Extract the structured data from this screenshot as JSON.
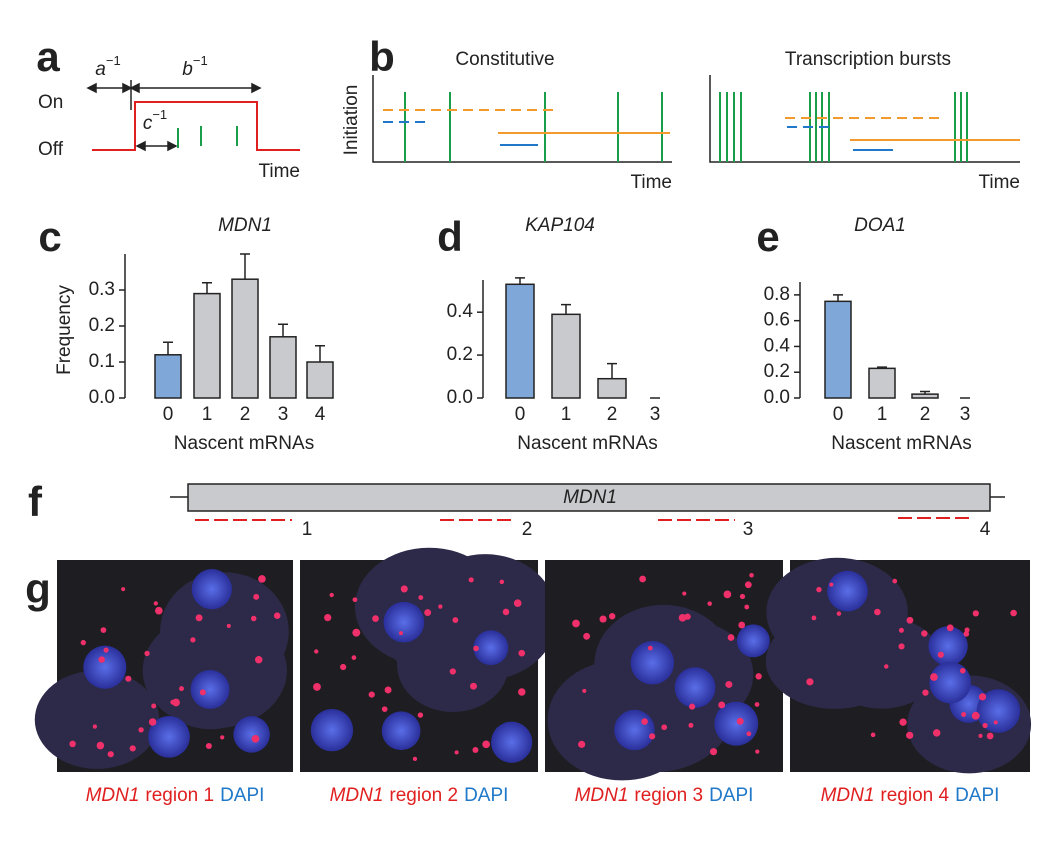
{
  "panel_a": {
    "label": "a",
    "on": "On",
    "off": "Off",
    "time": "Time",
    "durations": [
      {
        "base": "a",
        "exp": "−1"
      },
      {
        "base": "b",
        "exp": "−1"
      },
      {
        "base": "c",
        "exp": "−1"
      }
    ]
  },
  "panel_b": {
    "label": "b",
    "ylabel": "Initiation",
    "plots": [
      {
        "title": "Constitutive",
        "xlabel": "Time"
      },
      {
        "title": "Transcription bursts",
        "xlabel": "Time"
      }
    ]
  },
  "chart_data": [
    {
      "label": "c",
      "type": "bar",
      "title": "MDN1",
      "xlabel": "Nascent mRNAs",
      "ylabel": "Frequency",
      "categories": [
        "0",
        "1",
        "2",
        "3",
        "4"
      ],
      "values": [
        0.12,
        0.29,
        0.33,
        0.17,
        0.1
      ],
      "errors": [
        0.035,
        0.03,
        0.07,
        0.035,
        0.045
      ],
      "colors": [
        "#7fa8d9",
        "#c9cace",
        "#c9cace",
        "#c9cace",
        "#c9cace"
      ],
      "ylim": [
        0,
        0.4
      ],
      "yticks": [
        {
          "value": 0,
          "label": "0.0"
        },
        0.1,
        0.2,
        0.3
      ]
    },
    {
      "label": "d",
      "type": "bar",
      "title": "KAP104",
      "xlabel": "Nascent mRNAs",
      "categories": [
        "0",
        "1",
        "2",
        "3"
      ],
      "values": [
        0.53,
        0.39,
        0.09,
        0
      ],
      "errors": [
        0.03,
        0.045,
        0.07,
        0
      ],
      "colors": [
        "#7fa8d9",
        "#c9cace",
        "#c9cace",
        "#c9cace"
      ],
      "ylim": [
        0,
        0.55
      ],
      "yticks": [
        {
          "value": 0,
          "label": "0.0"
        },
        0.2,
        0.4
      ]
    },
    {
      "label": "e",
      "type": "bar",
      "title": "DOA1",
      "xlabel": "Nascent mRNAs",
      "categories": [
        "0",
        "1",
        "2",
        "3"
      ],
      "values": [
        0.75,
        0.23,
        0.03,
        0
      ],
      "errors": [
        0.05,
        0.01,
        0.02,
        0
      ],
      "colors": [
        "#7fa8d9",
        "#c9cace",
        "#c9cace",
        "#c9cace"
      ],
      "ylim": [
        0,
        0.9
      ],
      "yticks": [
        {
          "value": 0,
          "label": "0.0"
        },
        0.2,
        0.4,
        0.6,
        0.8
      ]
    }
  ],
  "panel_f": {
    "label": "f",
    "gene": "MDN1",
    "regions": [
      "1",
      "2",
      "3",
      "4"
    ]
  },
  "panel_g": {
    "label": "g",
    "captions": [
      {
        "gene": "MDN1",
        "region": "region 1",
        "stain": "DAPI"
      },
      {
        "gene": "MDN1",
        "region": "region 2",
        "stain": "DAPI"
      },
      {
        "gene": "MDN1",
        "region": "region 3",
        "stain": "DAPI"
      },
      {
        "gene": "MDN1",
        "region": "region 4",
        "stain": "DAPI"
      }
    ]
  }
}
